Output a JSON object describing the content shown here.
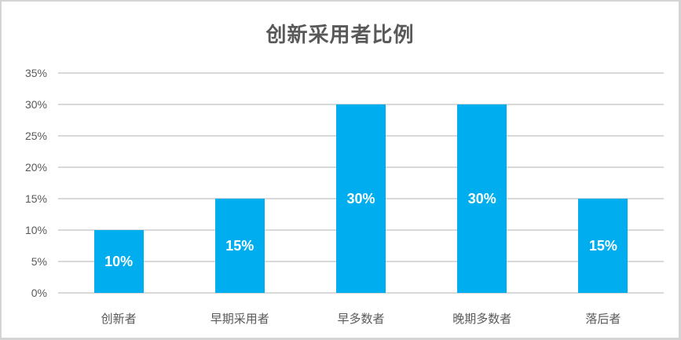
{
  "chart_data": {
    "type": "bar",
    "title": "创新采用者比例",
    "categories": [
      "创新者",
      "早期采用者",
      "早多数者",
      "晚期多数者",
      "落后者"
    ],
    "values": [
      10,
      15,
      30,
      30,
      15
    ],
    "data_labels": [
      "10%",
      "15%",
      "30%",
      "30%",
      "15%"
    ],
    "y_tick_labels": [
      "0%",
      "5%",
      "10%",
      "15%",
      "20%",
      "25%",
      "30%",
      "35%"
    ],
    "ylim": [
      0,
      35
    ],
    "y_tick_step": 5,
    "xlabel": "",
    "ylabel": "",
    "grid": "horizontal",
    "legend": "none",
    "data_label_position": "center-inside-bar",
    "colors": {
      "bar": "#00AEEF",
      "gridline": "#D9D9D9",
      "border": "#D4D4D4",
      "title_text": "#595959",
      "axis_text": "#595959",
      "data_label_text": "#FFFFFF",
      "background": "#FFFFFF"
    }
  }
}
